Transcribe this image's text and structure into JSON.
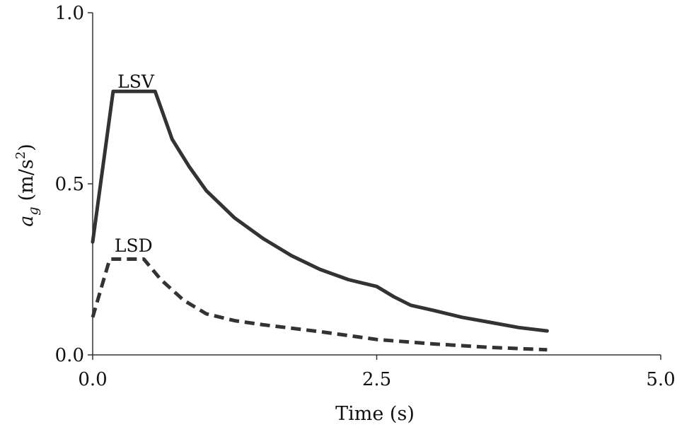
{
  "chart_data": {
    "type": "line",
    "title": "",
    "xlabel": "Time (s)",
    "ylabel": "a_g (m/s²)",
    "ylabel_parts": {
      "main": "a",
      "sub": "g",
      "units": "(m/s",
      "sup": "2",
      "close": ")"
    },
    "xlim": [
      0,
      5
    ],
    "ylim": [
      0,
      1
    ],
    "xticks": [
      0,
      2.5,
      5
    ],
    "xtick_labels": [
      "0.0",
      "2.5",
      "5.0"
    ],
    "yticks": [
      0,
      0.5,
      1
    ],
    "ytick_labels": [
      "0.0",
      "0.5",
      "1.0"
    ],
    "grid": false,
    "legend": "none",
    "series": [
      {
        "name": "LSV",
        "style": "solid",
        "color": "#333333",
        "x": [
          0.0,
          0.18,
          0.55,
          0.7,
          0.85,
          1.0,
          1.25,
          1.5,
          1.75,
          2.0,
          2.25,
          2.5,
          2.65,
          2.8,
          3.0,
          3.25,
          3.5,
          3.75,
          4.0
        ],
        "y": [
          0.33,
          0.77,
          0.77,
          0.63,
          0.55,
          0.48,
          0.4,
          0.34,
          0.29,
          0.25,
          0.22,
          0.2,
          0.17,
          0.145,
          0.13,
          0.11,
          0.095,
          0.08,
          0.07
        ]
      },
      {
        "name": "LSD",
        "style": "dashed",
        "color": "#333333",
        "x": [
          0.0,
          0.15,
          0.45,
          0.6,
          0.8,
          1.0,
          1.25,
          1.5,
          2.0,
          2.5,
          3.0,
          3.5,
          4.0
        ],
        "y": [
          0.11,
          0.28,
          0.28,
          0.22,
          0.16,
          0.12,
          0.1,
          0.088,
          0.068,
          0.045,
          0.032,
          0.022,
          0.015
        ]
      }
    ],
    "annotations": [
      {
        "text": "LSV",
        "x": 0.38,
        "y": 0.8
      },
      {
        "text": "LSD",
        "x": 0.36,
        "y": 0.32
      }
    ]
  }
}
